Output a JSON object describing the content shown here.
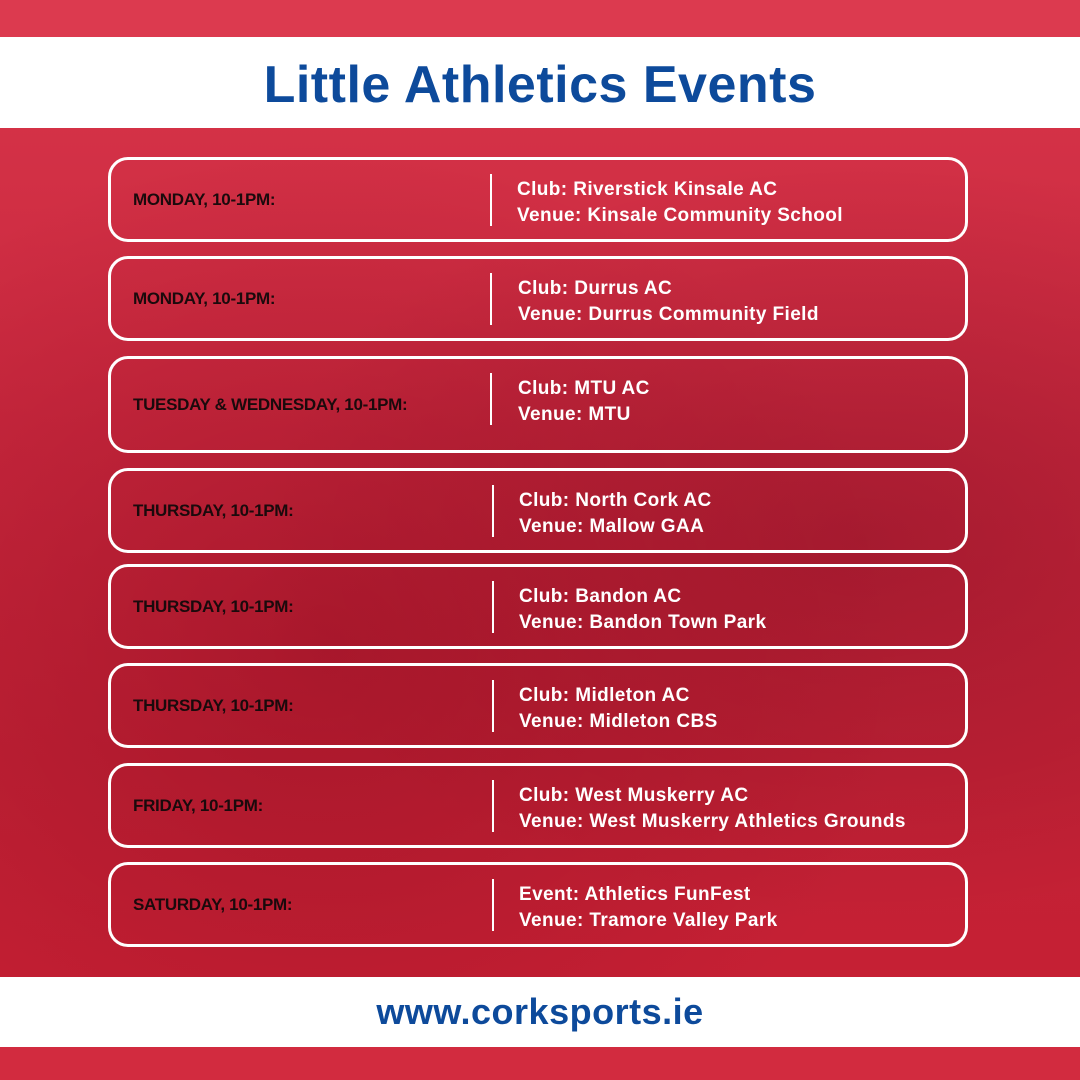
{
  "title": "Little Athletics Events",
  "events": [
    {
      "day": "MONDAY, 10-1PM:",
      "line1": "Club: Riverstick Kinsale AC",
      "line2": "Venue: Kinsale Community School"
    },
    {
      "day": "MONDAY, 10-1PM:",
      "line1": "Club: Durrus AC",
      "line2": "Venue: Durrus Community Field"
    },
    {
      "day": "TUESDAY & WEDNESDAY, 10-1PM:",
      "line1": "Club: MTU AC",
      "line2": "Venue: MTU"
    },
    {
      "day": "THURSDAY, 10-1PM:",
      "line1": "Club: North Cork AC",
      "line2": "Venue: Mallow GAA"
    },
    {
      "day": "THURSDAY, 10-1PM:",
      "line1": "Club: Bandon AC",
      "line2": "Venue: Bandon Town Park"
    },
    {
      "day": "THURSDAY, 10-1PM:",
      "line1": "Club: Midleton AC",
      "line2": "Venue: Midleton CBS"
    },
    {
      "day": "FRIDAY, 10-1PM:",
      "line1": "Club: West Muskerry AC",
      "line2": "Venue: West Muskerry Athletics Grounds"
    },
    {
      "day": "SATURDAY, 10-1PM:",
      "line1": "Event: Athletics FunFest",
      "line2": "Venue: Tramore Valley Park"
    }
  ],
  "footer_url": "www.corksports.ie",
  "colors": {
    "brand_blue": "#0d4a9b",
    "brand_red": "#d63447",
    "white": "#ffffff"
  }
}
